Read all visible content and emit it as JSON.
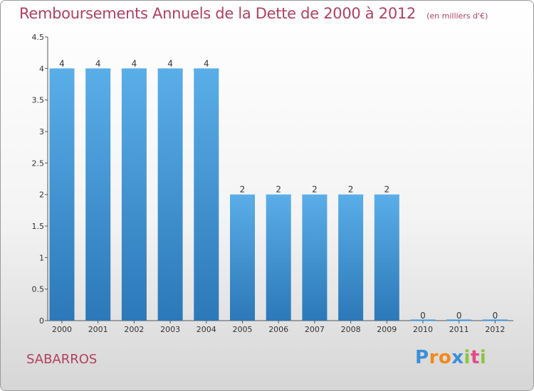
{
  "title": "Remboursements Annuels de la Dette de 2000 à 2012",
  "unit": "(en milliers d'€)",
  "town": "SABARROS",
  "logo": {
    "letters": [
      "P",
      "r",
      "o",
      "x",
      "i",
      "t",
      "i"
    ],
    "colors": [
      "#3a8fd8",
      "#f08a1c",
      "#f08a1c",
      "#3a8fd8",
      "#8cc63f",
      "#e64a8a",
      "#8cc63f"
    ]
  },
  "colors": {
    "bar": "#3f93d9",
    "bar_light": "#5aaee8",
    "bar_dark": "#2c78b8",
    "axis": "#555555",
    "grid": "#cccccc"
  },
  "chart_data": {
    "type": "bar",
    "categories": [
      "2000",
      "2001",
      "2002",
      "2003",
      "2004",
      "2005",
      "2006",
      "2007",
      "2008",
      "2009",
      "2010",
      "2011",
      "2012"
    ],
    "values": [
      4,
      4,
      4,
      4,
      4,
      2,
      2,
      2,
      2,
      2,
      0,
      0,
      0
    ],
    "data_labels": [
      "4",
      "4",
      "4",
      "4",
      "4",
      "2",
      "2",
      "2",
      "2",
      "2",
      "0",
      "0",
      "0"
    ],
    "yticks": [
      0,
      0.5,
      1,
      1.5,
      2,
      2.5,
      3,
      3.5,
      4,
      4.5
    ],
    "ytick_labels": [
      "0",
      "0.5",
      "1",
      "1.5",
      "2",
      "2.5",
      "3",
      "3.5",
      "4",
      "4.5"
    ],
    "ylim": [
      0,
      4.5
    ],
    "grid": false,
    "title": "Remboursements Annuels de la Dette de 2000 à 2012",
    "xlabel": "",
    "ylabel": ""
  }
}
